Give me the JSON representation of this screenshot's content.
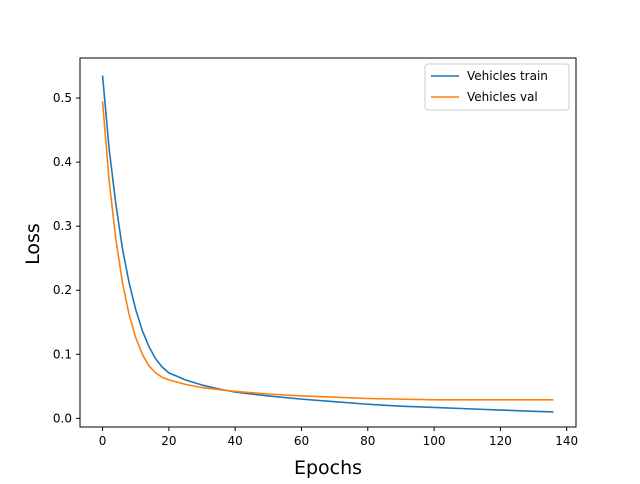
{
  "chart_data": {
    "type": "line",
    "title": "",
    "xlabel": "Epochs",
    "ylabel": "Loss",
    "xlim": [
      -6.8,
      142.8
    ],
    "ylim": [
      -0.0135,
      0.5625
    ],
    "xticks": [
      0,
      20,
      40,
      60,
      80,
      100,
      120,
      140
    ],
    "yticks": [
      0.0,
      0.1,
      0.2,
      0.3,
      0.4,
      0.5
    ],
    "ytick_labels": [
      "0.0",
      "0.1",
      "0.2",
      "0.3",
      "0.4",
      "0.5"
    ],
    "grid": false,
    "legend_position": "top-right",
    "series": [
      {
        "name": "Vehicles train",
        "color": "#1f77b4",
        "x": [
          0,
          2,
          4,
          6,
          8,
          10,
          12,
          14,
          16,
          18,
          20,
          25,
          30,
          35,
          40,
          50,
          60,
          70,
          80,
          90,
          100,
          110,
          120,
          130,
          136
        ],
        "y": [
          0.535,
          0.42,
          0.335,
          0.265,
          0.212,
          0.17,
          0.137,
          0.112,
          0.093,
          0.08,
          0.071,
          0.06,
          0.052,
          0.046,
          0.041,
          0.035,
          0.03,
          0.026,
          0.022,
          0.019,
          0.017,
          0.015,
          0.013,
          0.011,
          0.01
        ]
      },
      {
        "name": "Vehicles val",
        "color": "#ff7f0e",
        "x": [
          0,
          2,
          4,
          6,
          8,
          10,
          12,
          14,
          16,
          18,
          20,
          25,
          30,
          35,
          40,
          50,
          60,
          70,
          80,
          90,
          100,
          110,
          120,
          130,
          136
        ],
        "y": [
          0.495,
          0.37,
          0.28,
          0.212,
          0.162,
          0.126,
          0.1,
          0.082,
          0.071,
          0.064,
          0.06,
          0.053,
          0.048,
          0.045,
          0.042,
          0.038,
          0.035,
          0.033,
          0.031,
          0.03,
          0.029,
          0.029,
          0.029,
          0.029,
          0.029
        ]
      }
    ]
  }
}
